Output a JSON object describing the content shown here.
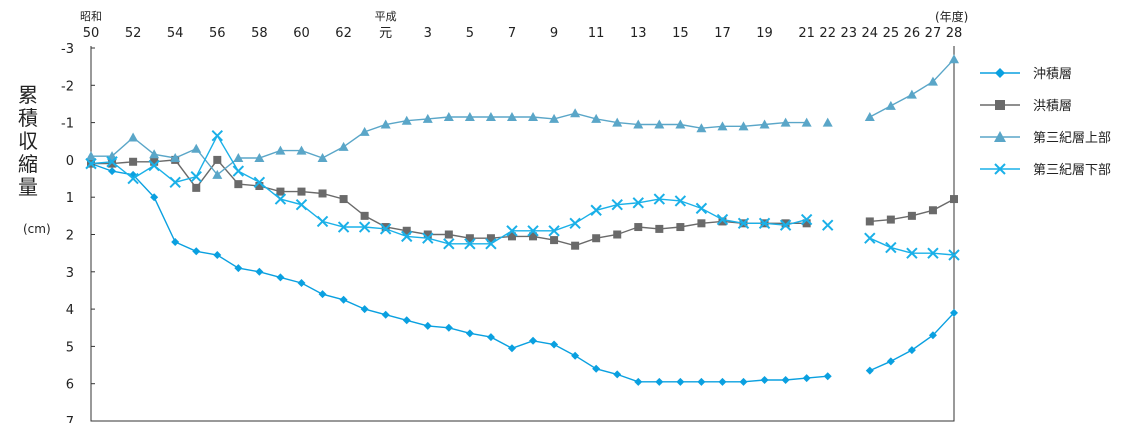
{
  "chart_data": {
    "type": "line",
    "title": "",
    "ylabel": "累積収縮量",
    "yunit": "(cm)",
    "xunit": "(年度)",
    "y_reversed": true,
    "ylim": [
      -3,
      7
    ],
    "yticks": [
      "-3",
      "-2",
      "-1",
      "0",
      "1",
      "2",
      "3",
      "4",
      "5",
      "6",
      "7"
    ],
    "xlim": [
      50,
      91
    ],
    "x_era_labels": [
      {
        "x": 50,
        "text": "昭和"
      },
      {
        "x": 64,
        "text": "平成"
      }
    ],
    "x_ticks": [
      {
        "x": 50,
        "label": "50"
      },
      {
        "x": 52,
        "label": "52"
      },
      {
        "x": 54,
        "label": "54"
      },
      {
        "x": 56,
        "label": "56"
      },
      {
        "x": 58,
        "label": "58"
      },
      {
        "x": 60,
        "label": "60"
      },
      {
        "x": 62,
        "label": "62"
      },
      {
        "x": 64,
        "label": "元"
      },
      {
        "x": 66,
        "label": "3"
      },
      {
        "x": 68,
        "label": "5"
      },
      {
        "x": 70,
        "label": "7"
      },
      {
        "x": 72,
        "label": "9"
      },
      {
        "x": 74,
        "label": "11"
      },
      {
        "x": 76,
        "label": "13"
      },
      {
        "x": 78,
        "label": "15"
      },
      {
        "x": 80,
        "label": "17"
      },
      {
        "x": 82,
        "label": "19"
      },
      {
        "x": 84,
        "label": "21"
      },
      {
        "x": 85,
        "label": "22"
      },
      {
        "x": 86,
        "label": "23"
      },
      {
        "x": 87,
        "label": "24"
      },
      {
        "x": 88,
        "label": "25"
      },
      {
        "x": 89,
        "label": "26"
      },
      {
        "x": 90,
        "label": "27"
      },
      {
        "x": 91,
        "label": "28"
      }
    ],
    "legend_position": "right",
    "series": [
      {
        "name": "沖積層",
        "color": "#0aa0e0",
        "marker": "diamond",
        "segments": [
          [
            [
              50,
              0.1
            ],
            [
              51,
              0.3
            ],
            [
              52,
              0.4
            ],
            [
              53,
              1.0
            ],
            [
              54,
              2.2
            ],
            [
              55,
              2.45
            ],
            [
              56,
              2.55
            ],
            [
              57,
              2.9
            ],
            [
              58,
              3.0
            ],
            [
              59,
              3.15
            ],
            [
              60,
              3.3
            ],
            [
              61,
              3.6
            ],
            [
              62,
              3.75
            ],
            [
              63,
              4.0
            ],
            [
              64,
              4.15
            ],
            [
              65,
              4.3
            ],
            [
              66,
              4.45
            ],
            [
              67,
              4.5
            ],
            [
              68,
              4.65
            ],
            [
              69,
              4.75
            ],
            [
              70,
              5.05
            ],
            [
              71,
              4.85
            ],
            [
              72,
              4.95
            ],
            [
              73,
              5.25
            ],
            [
              74,
              5.6
            ],
            [
              75,
              5.75
            ],
            [
              76,
              5.95
            ],
            [
              77,
              5.95
            ],
            [
              78,
              5.95
            ],
            [
              79,
              5.95
            ],
            [
              80,
              5.95
            ],
            [
              81,
              5.95
            ],
            [
              82,
              5.9
            ],
            [
              83,
              5.9
            ],
            [
              84,
              5.85
            ],
            [
              85,
              5.8
            ]
          ],
          [
            [
              87,
              5.65
            ],
            [
              88,
              5.4
            ],
            [
              89,
              5.1
            ],
            [
              90,
              4.7
            ],
            [
              91,
              4.1
            ]
          ]
        ]
      },
      {
        "name": "洪積層",
        "color": "#6a6a6a",
        "marker": "square",
        "segments": [
          [
            [
              50,
              0.1
            ],
            [
              51,
              0.1
            ],
            [
              52,
              0.05
            ],
            [
              53,
              0.05
            ],
            [
              54,
              0.0
            ],
            [
              55,
              0.75
            ],
            [
              56,
              0.0
            ],
            [
              57,
              0.65
            ],
            [
              58,
              0.7
            ],
            [
              59,
              0.85
            ],
            [
              60,
              0.85
            ],
            [
              61,
              0.9
            ],
            [
              62,
              1.05
            ],
            [
              63,
              1.5
            ],
            [
              64,
              1.8
            ],
            [
              65,
              1.9
            ],
            [
              66,
              2.0
            ],
            [
              67,
              2.0
            ],
            [
              68,
              2.1
            ],
            [
              69,
              2.1
            ],
            [
              70,
              2.05
            ],
            [
              71,
              2.05
            ],
            [
              72,
              2.15
            ],
            [
              73,
              2.3
            ],
            [
              74,
              2.1
            ],
            [
              75,
              2.0
            ],
            [
              76,
              1.8
            ],
            [
              77,
              1.85
            ],
            [
              78,
              1.8
            ],
            [
              79,
              1.7
            ],
            [
              80,
              1.65
            ],
            [
              81,
              1.7
            ],
            [
              82,
              1.7
            ],
            [
              83,
              1.7
            ],
            [
              84,
              1.7
            ]
          ],
          [
            [
              87,
              1.65
            ],
            [
              88,
              1.6
            ],
            [
              89,
              1.5
            ],
            [
              90,
              1.35
            ],
            [
              91,
              1.05
            ]
          ]
        ]
      },
      {
        "name": "第三紀層上部",
        "color": "#5aa6c8",
        "marker": "triangle",
        "segments": [
          [
            [
              50,
              -0.1
            ],
            [
              51,
              -0.1
            ],
            [
              52,
              -0.6
            ],
            [
              53,
              -0.15
            ],
            [
              54,
              -0.05
            ],
            [
              55,
              -0.3
            ],
            [
              56,
              0.4
            ],
            [
              57,
              -0.05
            ],
            [
              58,
              -0.05
            ],
            [
              59,
              -0.25
            ],
            [
              60,
              -0.25
            ],
            [
              61,
              -0.05
            ],
            [
              62,
              -0.35
            ],
            [
              63,
              -0.75
            ],
            [
              64,
              -0.95
            ],
            [
              65,
              -1.05
            ],
            [
              66,
              -1.1
            ],
            [
              67,
              -1.15
            ],
            [
              68,
              -1.15
            ],
            [
              69,
              -1.15
            ],
            [
              70,
              -1.15
            ],
            [
              71,
              -1.15
            ],
            [
              72,
              -1.1
            ],
            [
              73,
              -1.25
            ],
            [
              74,
              -1.1
            ],
            [
              75,
              -1.0
            ],
            [
              76,
              -0.95
            ],
            [
              77,
              -0.95
            ],
            [
              78,
              -0.95
            ],
            [
              79,
              -0.85
            ],
            [
              80,
              -0.9
            ],
            [
              81,
              -0.9
            ],
            [
              82,
              -0.95
            ],
            [
              83,
              -1.0
            ],
            [
              84,
              -1.0
            ]
          ],
          [
            [
              85,
              -1.0
            ]
          ],
          [
            [
              87,
              -1.15
            ],
            [
              88,
              -1.45
            ],
            [
              89,
              -1.75
            ],
            [
              90,
              -2.1
            ],
            [
              91,
              -2.7
            ]
          ]
        ]
      },
      {
        "name": "第三紀層下部",
        "color": "#1ab0e8",
        "marker": "cross",
        "segments": [
          [
            [
              50,
              0.1
            ],
            [
              51,
              0.05
            ],
            [
              52,
              0.5
            ],
            [
              53,
              0.15
            ],
            [
              54,
              0.6
            ],
            [
              55,
              0.45
            ],
            [
              56,
              -0.65
            ],
            [
              57,
              0.3
            ],
            [
              58,
              0.6
            ],
            [
              59,
              1.05
            ],
            [
              60,
              1.2
            ],
            [
              61,
              1.65
            ],
            [
              62,
              1.8
            ],
            [
              63,
              1.8
            ],
            [
              64,
              1.85
            ],
            [
              65,
              2.05
            ],
            [
              66,
              2.1
            ],
            [
              67,
              2.25
            ],
            [
              68,
              2.25
            ],
            [
              69,
              2.25
            ],
            [
              70,
              1.9
            ],
            [
              71,
              1.9
            ],
            [
              72,
              1.9
            ],
            [
              73,
              1.7
            ],
            [
              74,
              1.35
            ],
            [
              75,
              1.2
            ],
            [
              76,
              1.15
            ],
            [
              77,
              1.05
            ],
            [
              78,
              1.1
            ],
            [
              79,
              1.3
            ],
            [
              80,
              1.6
            ],
            [
              81,
              1.7
            ],
            [
              82,
              1.7
            ],
            [
              83,
              1.75
            ],
            [
              84,
              1.6
            ]
          ],
          [
            [
              85,
              1.75
            ]
          ],
          [
            [
              87,
              2.1
            ],
            [
              88,
              2.35
            ],
            [
              89,
              2.5
            ],
            [
              90,
              2.5
            ],
            [
              91,
              2.55
            ]
          ]
        ]
      }
    ]
  }
}
